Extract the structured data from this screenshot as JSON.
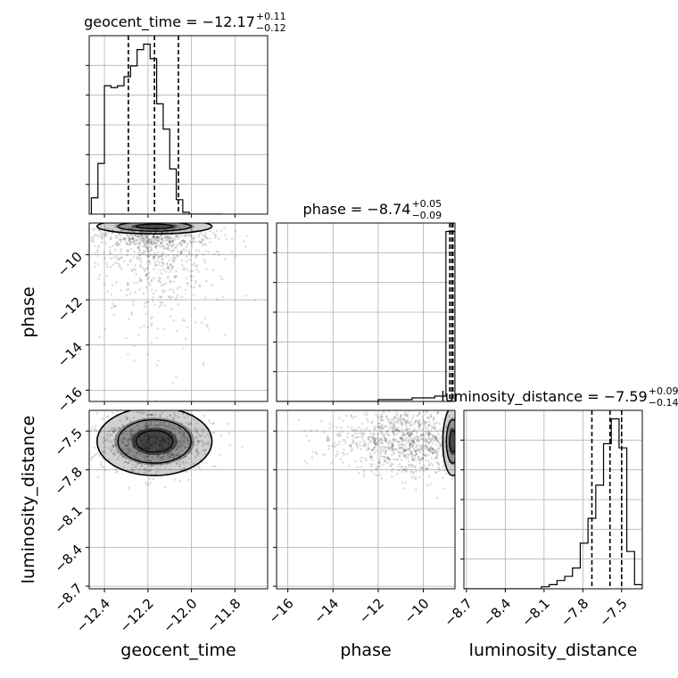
{
  "chart_data": {
    "type": "corner",
    "parameters": [
      "geocent_time",
      "phase",
      "luminosity_distance"
    ],
    "grid": true,
    "marginals": [
      {
        "param": "geocent_time",
        "title_prefix": "geocent_time = ",
        "median": "−12.17",
        "plus": "+0.11",
        "minus": "−0.12",
        "quantiles": [
          -12.29,
          -12.17,
          -12.06
        ],
        "bin_edges": [
          -12.46,
          -12.43,
          -12.4,
          -12.37,
          -12.34,
          -12.31,
          -12.28,
          -12.25,
          -12.22,
          -12.19,
          -12.16,
          -12.13,
          -12.1,
          -12.07,
          -12.04,
          -12.01,
          -11.98,
          -11.95,
          -11.92,
          -11.89,
          -11.86
        ],
        "counts": [
          9,
          28,
          71,
          70,
          71,
          76,
          82,
          91,
          94,
          86,
          61,
          47,
          25,
          8,
          1,
          0,
          0,
          0,
          0,
          0
        ],
        "xlim": [
          -12.47,
          -11.65
        ]
      },
      {
        "param": "phase",
        "title_prefix": "phase = ",
        "median": "−8.74",
        "plus": "+0.05",
        "minus": "−0.09",
        "quantiles": [
          -8.83,
          -8.74,
          -8.69
        ],
        "bin_edges": [
          -16.5,
          -16.0,
          -15.5,
          -15.0,
          -14.5,
          -14.0,
          -13.5,
          -13.0,
          -12.5,
          -12.0,
          -11.5,
          -11.0,
          -10.5,
          -10.0,
          -9.5,
          -9.0,
          -8.6
        ],
        "counts": [
          0,
          0,
          0,
          0,
          0,
          0,
          0,
          0,
          0,
          1,
          1,
          1,
          2,
          2,
          3,
          95
        ],
        "xlim": [
          -16.5,
          -8.6
        ]
      },
      {
        "param": "luminosity_distance",
        "title_prefix": "luminosity_distance = ",
        "median": "−7.59",
        "plus": "+0.09",
        "minus": "−0.14",
        "quantiles": [
          -7.73,
          -7.59,
          -7.5
        ],
        "bin_edges": [
          -8.72,
          -8.66,
          -8.6,
          -8.54,
          -8.48,
          -8.42,
          -8.36,
          -8.3,
          -8.24,
          -8.18,
          -8.12,
          -8.06,
          -8.0,
          -7.94,
          -7.88,
          -7.82,
          -7.76,
          -7.7,
          -7.64,
          -7.58,
          -7.52,
          -7.46,
          -7.4,
          -7.34
        ],
        "counts": [
          0,
          0,
          0,
          0,
          0,
          0,
          0,
          0,
          0,
          0,
          1,
          2,
          4,
          6,
          10,
          22,
          34,
          50,
          70,
          82,
          68,
          18,
          2
        ],
        "xlim": [
          -8.72,
          -7.34
        ]
      }
    ],
    "pairs": [
      {
        "x": "geocent_time",
        "y": "phase",
        "xlim": [
          -12.47,
          -11.65
        ],
        "ylim": [
          -16.5,
          -8.6
        ],
        "density_center": [
          -12.17,
          -8.75
        ],
        "density_spread": [
          0.12,
          0.15
        ]
      },
      {
        "x": "geocent_time",
        "y": "luminosity_distance",
        "xlim": [
          -12.47,
          -11.65
        ],
        "ylim": [
          -8.72,
          -7.34
        ],
        "density_center": [
          -12.17,
          -7.58
        ],
        "density_spread": [
          0.12,
          0.12
        ]
      },
      {
        "x": "phase",
        "y": "luminosity_distance",
        "xlim": [
          -16.5,
          -8.6
        ],
        "ylim": [
          -8.72,
          -7.34
        ],
        "density_center": [
          -8.7,
          -7.58
        ],
        "density_spread": [
          0.2,
          0.12
        ]
      }
    ],
    "axes": {
      "geocent_time": {
        "ticks": [
          -12.4,
          -12.2,
          -12.0,
          -11.8
        ],
        "tick_labels": [
          "−12.4",
          "−12.2",
          "−12.0",
          "−11.8"
        ],
        "label": "geocent_time"
      },
      "phase": {
        "ticks": [
          -16,
          -14,
          -12,
          -10
        ],
        "tick_labels": [
          "−16",
          "−14",
          "−12",
          "−10"
        ],
        "label": "phase"
      },
      "luminosity_distance": {
        "ticks": [
          -8.7,
          -8.4,
          -8.1,
          -7.8,
          -7.5
        ],
        "tick_labels": [
          "−8.7",
          "−8.4",
          "−8.1",
          "−7.8",
          "−7.5"
        ],
        "label": "luminosity_distance"
      }
    }
  }
}
